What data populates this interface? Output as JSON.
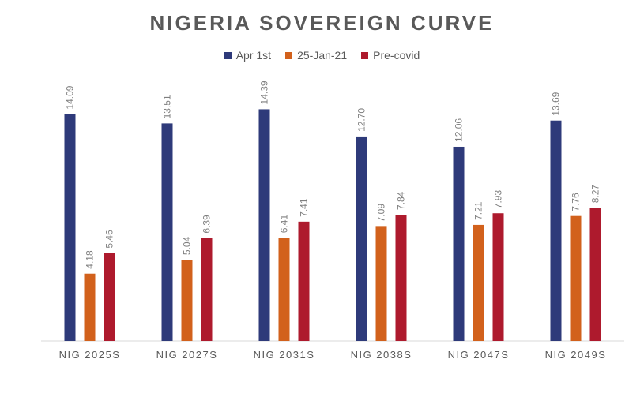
{
  "chart_data": {
    "type": "bar",
    "title": "NIGERIA SOVEREIGN CURVE",
    "categories": [
      "NIG 2025S",
      "NIG 2027S",
      "NIG 2031S",
      "NIG 2038S",
      "NIG 2047S",
      "NIG 2049S"
    ],
    "series": [
      {
        "name": "Apr 1st",
        "color": "#2E3A7A",
        "values": [
          14.09,
          13.51,
          14.39,
          12.7,
          12.06,
          13.69
        ],
        "labels": [
          "14.09",
          "13.51",
          "14.39",
          "12.70",
          "12.06",
          "13.69"
        ]
      },
      {
        "name": "25-Jan-21",
        "color": "#D2611C",
        "values": [
          4.18,
          5.04,
          6.41,
          7.09,
          7.21,
          7.76
        ],
        "labels": [
          "4.18",
          "5.04",
          "6.41",
          "7.09",
          "7.21",
          "7.76"
        ]
      },
      {
        "name": "Pre-covid",
        "color": "#AE1A2D",
        "values": [
          5.46,
          6.39,
          7.41,
          7.84,
          7.93,
          8.27
        ],
        "labels": [
          "5.46",
          "6.39",
          "7.41",
          "7.84",
          "7.93",
          "8.27"
        ]
      }
    ],
    "ylim": [
      0,
      16
    ],
    "grid": false,
    "legend_position": "top"
  }
}
